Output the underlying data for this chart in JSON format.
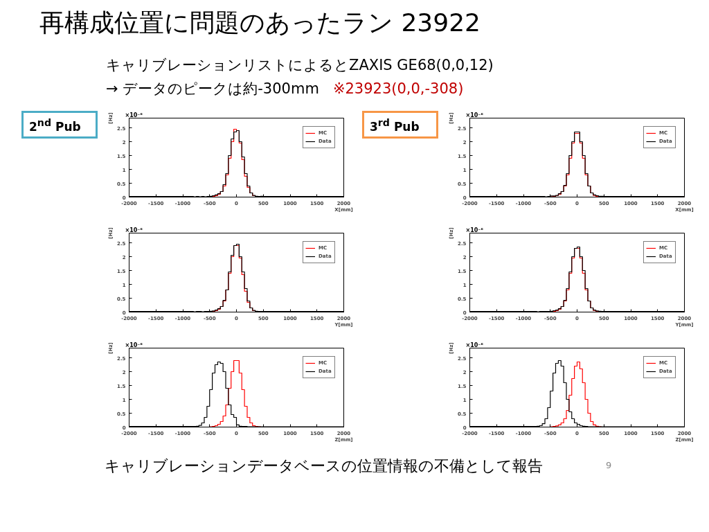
{
  "chart_data": [
    {
      "type": "histogram",
      "title": "再構成位置に問題のあったラン 23922",
      "subtitle": "キャリブレーションリストによるとZAXIS GE68(0,0,12)",
      "annotations": [
        "→ データのピークは約-300mm",
        "※23923(0,0,-308)",
        "2$^{nd}$ Pub",
        "×10⁻⁶"
      ],
      "xlabel": "X[mm]",
      "ylabel": "[Hz]",
      "bins": [
        -2000,
        -1000,
        -800,
        -750,
        -700,
        -650,
        -600,
        -550,
        -500,
        -450,
        -400,
        -350,
        -300,
        -250,
        -200,
        -150,
        -100,
        -50,
        0,
        50,
        100,
        150,
        200,
        250,
        300,
        350,
        400,
        450,
        500,
        550,
        600,
        1000,
        2000
      ],
      "series": [
        {
          "name": "MC",
          "color": "#ff0000",
          "values": [
            0,
            0,
            0,
            0,
            0,
            0,
            0,
            0,
            0.01,
            0.02,
            0.05,
            0.1,
            0.2,
            0.4,
            0.8,
            1.4,
            2.0,
            2.45,
            2.4,
            1.95,
            1.35,
            0.75,
            0.35,
            0.15,
            0.05,
            0.02,
            0.01,
            0,
            0,
            0,
            0,
            0
          ]
        },
        {
          "name": "Data",
          "color": "#000000",
          "values": [
            0.02,
            0.02,
            0.01,
            0.02,
            0.01,
            0.02,
            0.01,
            0.02,
            0.03,
            0.05,
            0.08,
            0.12,
            0.2,
            0.45,
            0.85,
            1.5,
            2.1,
            2.35,
            2.4,
            2.0,
            1.45,
            0.85,
            0.4,
            0.15,
            0.06,
            0.03,
            0.02,
            0.03,
            0.02,
            0.02,
            0.02,
            0.02
          ]
        }
      ],
      "xlim": [
        -2000,
        2000
      ],
      "xticks": [
        -2000,
        -1500,
        -1000,
        -500,
        0,
        500,
        1000,
        1500,
        2000
      ],
      "ylim": [
        0,
        2.85
      ],
      "yticks": [
        0,
        0.5,
        1,
        1.5,
        2,
        2.5
      ],
      "grid": false,
      "legend": "top right"
    },
    {
      "type": "histogram",
      "annotations": [
        "3$^{rd}$ Pub",
        "×10⁻⁶"
      ],
      "xlabel": "X[mm]",
      "ylabel": "[Hz]",
      "bins": [
        -2000,
        -1000,
        -800,
        -750,
        -700,
        -650,
        -600,
        -550,
        -500,
        -450,
        -400,
        -350,
        -300,
        -250,
        -200,
        -150,
        -100,
        -50,
        0,
        50,
        100,
        150,
        200,
        250,
        300,
        350,
        400,
        450,
        500,
        550,
        600,
        1000,
        2000
      ],
      "series": [
        {
          "name": "MC",
          "color": "#ff0000",
          "values": [
            0,
            0,
            0,
            0,
            0,
            0,
            0,
            0,
            0.01,
            0.02,
            0.05,
            0.1,
            0.2,
            0.4,
            0.8,
            1.4,
            1.95,
            2.3,
            2.3,
            1.95,
            1.4,
            0.8,
            0.4,
            0.15,
            0.06,
            0.02,
            0.01,
            0,
            0,
            0,
            0,
            0
          ]
        },
        {
          "name": "Data",
          "color": "#000000",
          "values": [
            0.02,
            0.02,
            0.02,
            0.02,
            0.02,
            0.02,
            0.01,
            0.02,
            0.04,
            0.04,
            0.06,
            0.12,
            0.2,
            0.42,
            0.85,
            1.5,
            2.0,
            2.35,
            2.35,
            2.0,
            1.5,
            0.85,
            0.4,
            0.15,
            0.08,
            0.05,
            0.03,
            0.03,
            0.02,
            0.02,
            0.02,
            0.02
          ]
        }
      ],
      "xlim": [
        -2000,
        2000
      ],
      "xticks": [
        -2000,
        -1500,
        -1000,
        -500,
        0,
        500,
        1000,
        1500,
        2000
      ],
      "ylim": [
        0,
        2.85
      ],
      "yticks": [
        0,
        0.5,
        1,
        1.5,
        2,
        2.5
      ],
      "grid": false,
      "legend": "top right"
    },
    {
      "type": "histogram",
      "annotations": [
        "×10⁻⁶"
      ],
      "xlabel": "Y[mm]",
      "ylabel": "[Hz]",
      "bins": [
        -2000,
        -1000,
        -800,
        -750,
        -700,
        -650,
        -600,
        -550,
        -500,
        -450,
        -400,
        -350,
        -300,
        -250,
        -200,
        -150,
        -100,
        -50,
        0,
        50,
        100,
        150,
        200,
        250,
        300,
        350,
        400,
        450,
        500,
        550,
        600,
        1000,
        2000
      ],
      "series": [
        {
          "name": "MC",
          "color": "#ff0000",
          "values": [
            0,
            0,
            0,
            0,
            0,
            0,
            0,
            0,
            0.01,
            0.02,
            0.05,
            0.1,
            0.2,
            0.4,
            0.8,
            1.4,
            2.0,
            2.4,
            2.4,
            1.95,
            1.35,
            0.75,
            0.35,
            0.15,
            0.05,
            0.02,
            0.01,
            0,
            0,
            0,
            0,
            0
          ]
        },
        {
          "name": "Data",
          "color": "#000000",
          "values": [
            0.02,
            0.02,
            0.01,
            0.02,
            0.02,
            0.01,
            0.02,
            0.02,
            0.03,
            0.04,
            0.07,
            0.12,
            0.2,
            0.42,
            0.8,
            1.45,
            2.05,
            2.4,
            2.45,
            2.0,
            1.45,
            0.85,
            0.4,
            0.15,
            0.06,
            0.03,
            0.02,
            0.02,
            0.02,
            0.02,
            0.02,
            0.02
          ]
        }
      ],
      "xlim": [
        -2000,
        2000
      ],
      "xticks": [
        -2000,
        -1500,
        -1000,
        -500,
        0,
        500,
        1000,
        1500,
        2000
      ],
      "ylim": [
        0,
        2.85
      ],
      "yticks": [
        0,
        0.5,
        1,
        1.5,
        2,
        2.5
      ],
      "grid": false,
      "legend": "top right"
    },
    {
      "type": "histogram",
      "annotations": [
        "×10⁻⁶"
      ],
      "xlabel": "Y[mm]",
      "ylabel": "[Hz]",
      "bins": [
        -2000,
        -1000,
        -800,
        -750,
        -700,
        -650,
        -600,
        -550,
        -500,
        -450,
        -400,
        -350,
        -300,
        -250,
        -200,
        -150,
        -100,
        -50,
        0,
        50,
        100,
        150,
        200,
        250,
        300,
        350,
        400,
        450,
        500,
        550,
        600,
        1000,
        2000
      ],
      "series": [
        {
          "name": "MC",
          "color": "#ff0000",
          "values": [
            0,
            0,
            0,
            0,
            0,
            0,
            0,
            0,
            0.01,
            0.02,
            0.05,
            0.1,
            0.2,
            0.4,
            0.8,
            1.4,
            1.95,
            2.3,
            2.3,
            1.95,
            1.4,
            0.8,
            0.4,
            0.15,
            0.06,
            0.02,
            0.01,
            0,
            0,
            0,
            0,
            0
          ]
        },
        {
          "name": "Data",
          "color": "#000000",
          "values": [
            0.02,
            0.02,
            0.02,
            0.01,
            0.02,
            0.02,
            0.02,
            0.02,
            0.03,
            0.05,
            0.07,
            0.12,
            0.2,
            0.42,
            0.85,
            1.45,
            2.0,
            2.3,
            2.35,
            2.0,
            1.5,
            0.85,
            0.4,
            0.15,
            0.07,
            0.04,
            0.03,
            0.02,
            0.02,
            0.02,
            0.02,
            0.02
          ]
        }
      ],
      "xlim": [
        -2000,
        2000
      ],
      "xticks": [
        -2000,
        -1500,
        -1000,
        -500,
        0,
        500,
        1000,
        1500,
        2000
      ],
      "ylim": [
        0,
        2.85
      ],
      "yticks": [
        0,
        0.5,
        1,
        1.5,
        2,
        2.5
      ],
      "grid": false,
      "legend": "top right"
    },
    {
      "type": "histogram",
      "annotations": [
        "×10⁻⁶"
      ],
      "xlabel": "Z[mm]",
      "ylabel": "[Hz]",
      "bins": [
        -2000,
        -1000,
        -800,
        -750,
        -700,
        -650,
        -600,
        -550,
        -500,
        -450,
        -400,
        -350,
        -300,
        -250,
        -200,
        -150,
        -100,
        -50,
        0,
        50,
        100,
        150,
        200,
        250,
        300,
        350,
        400,
        450,
        500,
        550,
        600,
        1000,
        2000
      ],
      "series": [
        {
          "name": "MC",
          "color": "#ff0000",
          "values": [
            0,
            0,
            0,
            0,
            0,
            0,
            0,
            0,
            0.01,
            0.02,
            0.05,
            0.1,
            0.2,
            0.4,
            0.8,
            1.4,
            2.0,
            2.4,
            2.4,
            1.95,
            1.35,
            0.75,
            0.35,
            0.15,
            0.05,
            0.02,
            0.01,
            0,
            0,
            0,
            0,
            0
          ]
        },
        {
          "name": "Data",
          "color": "#000000",
          "values": [
            0.02,
            0.02,
            0.02,
            0.03,
            0.06,
            0.15,
            0.35,
            0.75,
            1.35,
            1.95,
            2.25,
            2.35,
            2.3,
            2.0,
            1.4,
            0.8,
            0.45,
            0.35,
            0.08,
            0.03,
            0.02,
            0.02,
            0.01,
            0.01,
            0.01,
            0.01,
            0.01,
            0.01,
            0.01,
            0.01,
            0.01,
            0.01
          ]
        }
      ],
      "xlim": [
        -2000,
        2000
      ],
      "xticks": [
        -2000,
        -1500,
        -1000,
        -500,
        0,
        500,
        1000,
        1500,
        2000
      ],
      "ylim": [
        0,
        2.85
      ],
      "yticks": [
        0,
        0.5,
        1,
        1.5,
        2,
        2.5
      ],
      "grid": false,
      "legend": "top right"
    },
    {
      "type": "histogram",
      "annotations": [
        "×10⁻⁶",
        "キャリブレーションデータベースの位置情報の不備として報告",
        "9"
      ],
      "xlabel": "Z[mm]",
      "ylabel": "[Hz]",
      "bins": [
        -2000,
        -1000,
        -800,
        -750,
        -700,
        -650,
        -600,
        -550,
        -500,
        -450,
        -400,
        -350,
        -300,
        -250,
        -200,
        -150,
        -100,
        -50,
        0,
        50,
        100,
        150,
        200,
        250,
        300,
        350,
        400,
        450,
        500,
        550,
        600,
        1000,
        2000
      ],
      "series": [
        {
          "name": "MC",
          "color": "#ff0000",
          "values": [
            0,
            0,
            0,
            0,
            0,
            0,
            0,
            0,
            0.01,
            0.02,
            0.04,
            0.08,
            0.15,
            0.3,
            0.6,
            1.15,
            1.75,
            2.2,
            2.35,
            2.1,
            1.6,
            1.0,
            0.5,
            0.2,
            0.08,
            0.03,
            0.01,
            0,
            0,
            0,
            0,
            0
          ]
        },
        {
          "name": "Data",
          "color": "#000000",
          "values": [
            0.02,
            0.02,
            0.02,
            0.03,
            0.05,
            0.12,
            0.3,
            0.7,
            1.3,
            1.95,
            2.3,
            2.4,
            2.2,
            1.6,
            1.0,
            0.55,
            0.3,
            0.15,
            0.1,
            0.05,
            0.03,
            0.02,
            0.01,
            0.01,
            0.01,
            0.01,
            0.01,
            0.01,
            0.01,
            0.01,
            0.01,
            0.01
          ]
        }
      ],
      "xlim": [
        -2000,
        2000
      ],
      "xticks": [
        -2000,
        -1500,
        -1000,
        -500,
        0,
        500,
        1000,
        1500,
        2000
      ],
      "ylim": [
        0,
        2.85
      ],
      "yticks": [
        0,
        0.5,
        1,
        1.5,
        2,
        2.5
      ],
      "grid": false,
      "legend": "top right"
    }
  ]
}
